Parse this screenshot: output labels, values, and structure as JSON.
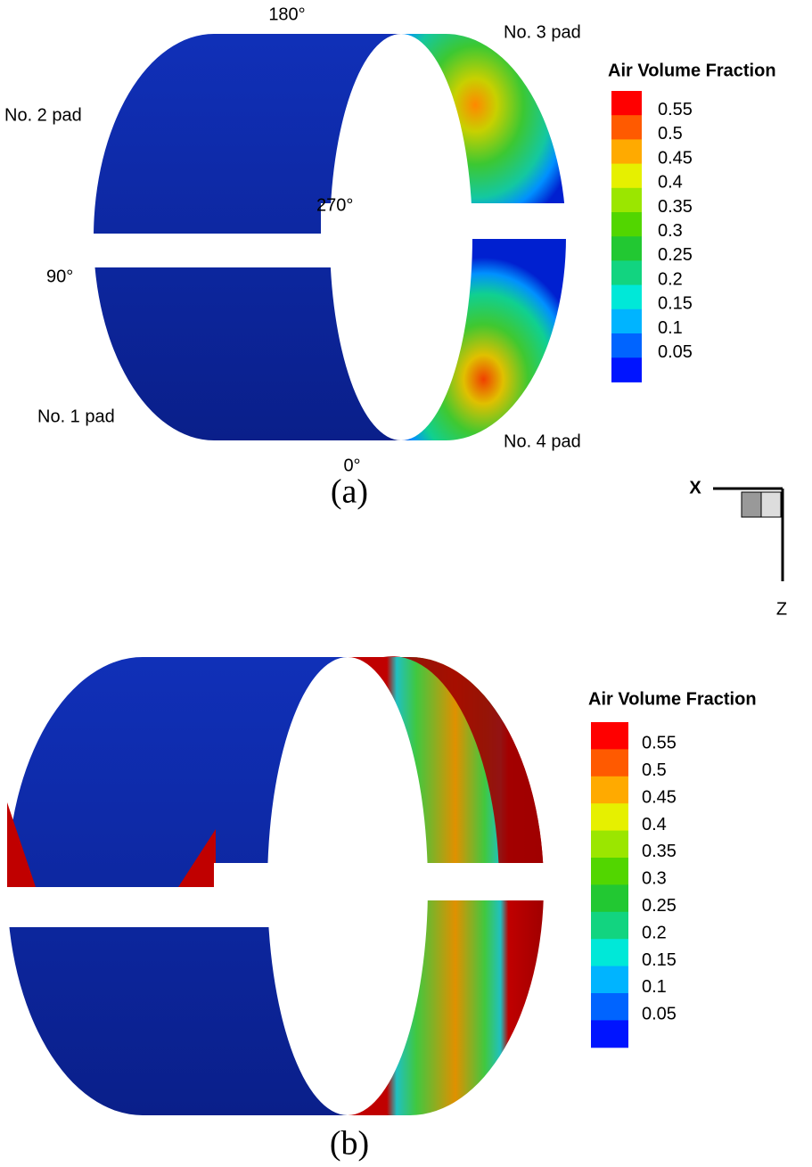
{
  "figure": {
    "panels": [
      {
        "caption": "(a)",
        "pad_labels": [
          "No. 1 pad",
          "No. 2 pad",
          "No. 3 pad",
          "No. 4 pad"
        ],
        "angle_labels": [
          "0°",
          "90°",
          "180°",
          "270°"
        ],
        "legend": {
          "title": "Air Volume Fraction",
          "levels": [
            0.55,
            0.5,
            0.45,
            0.4,
            0.35,
            0.3,
            0.25,
            0.2,
            0.15,
            0.1,
            0.05
          ],
          "colors": [
            "#ff0000",
            "#ff5a00",
            "#ffaa00",
            "#e6f000",
            "#9be600",
            "#52d600",
            "#22c832",
            "#12d480",
            "#00e8d8",
            "#00b4ff",
            "#0064ff",
            "#0014ff"
          ]
        }
      },
      {
        "caption": "(b)",
        "legend": {
          "title": "Air Volume Fraction",
          "levels": [
            0.55,
            0.5,
            0.45,
            0.4,
            0.35,
            0.3,
            0.25,
            0.2,
            0.15,
            0.1,
            0.05
          ],
          "colors": [
            "#ff0000",
            "#ff5a00",
            "#ffaa00",
            "#e6f000",
            "#9be600",
            "#52d600",
            "#22c832",
            "#12d480",
            "#00e8d8",
            "#00b4ff",
            "#0064ff",
            "#0014ff"
          ]
        }
      }
    ],
    "axes": {
      "x": "X",
      "z": "Z"
    }
  }
}
